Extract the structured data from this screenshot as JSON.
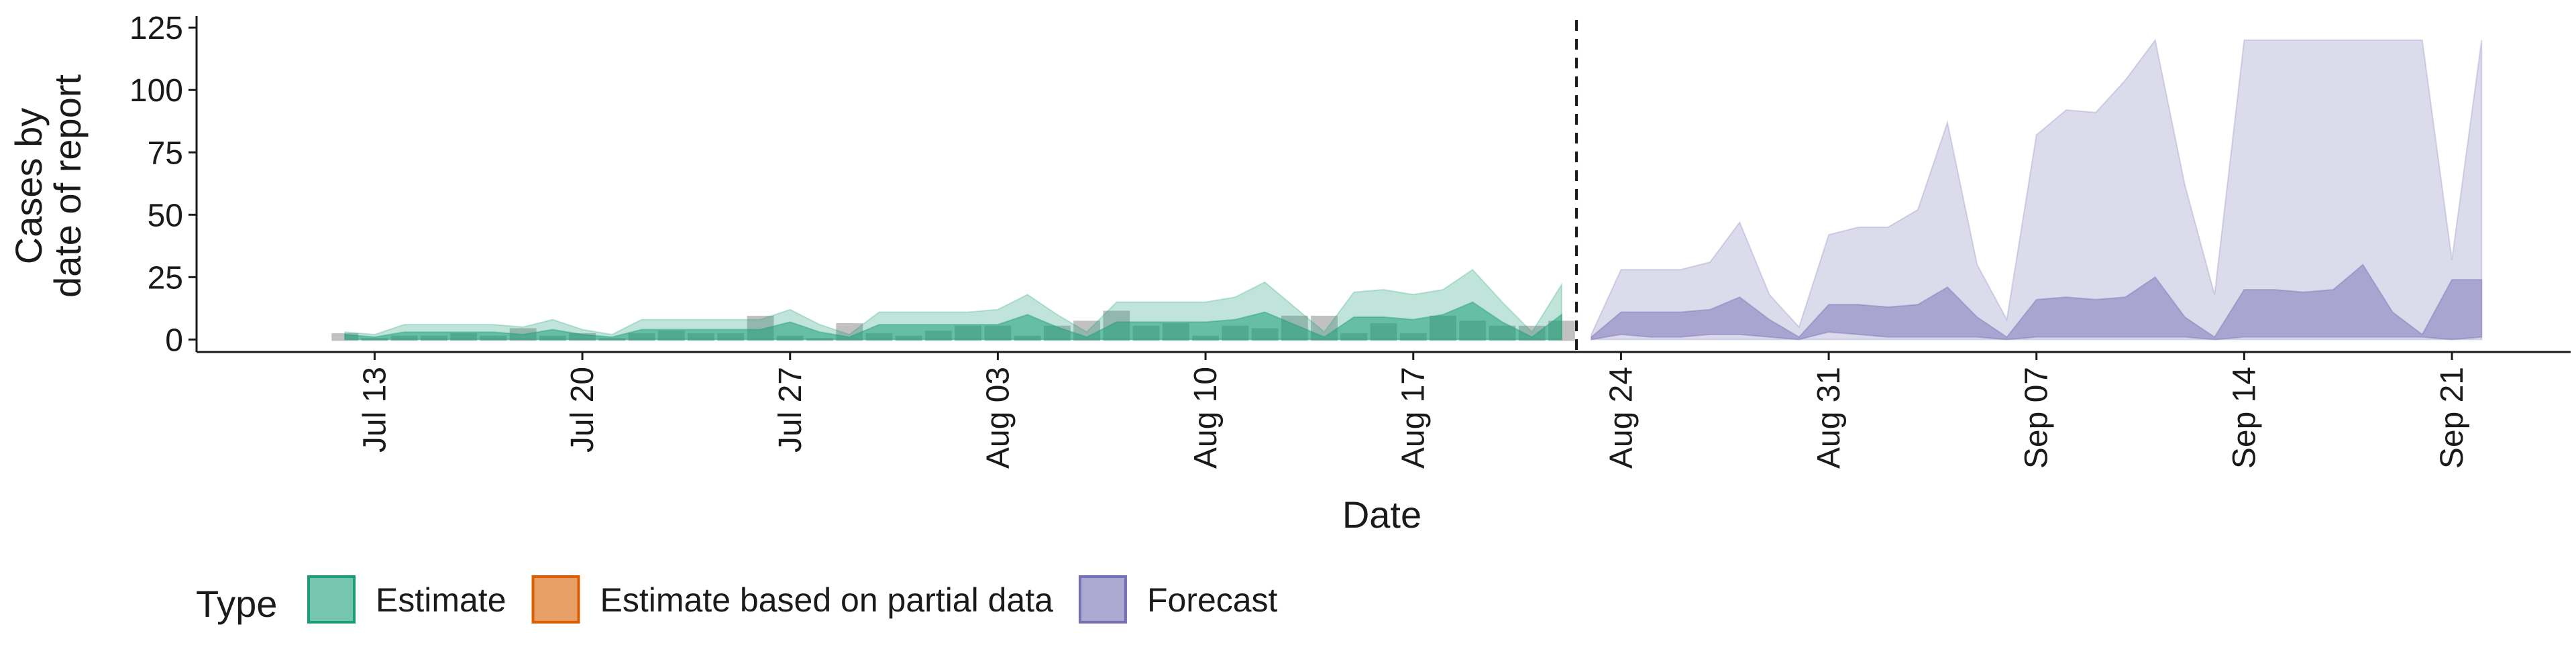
{
  "chart_data": {
    "type": "area",
    "xlabel": "Date",
    "ylabel_lines": [
      "Cases by",
      "date of report"
    ],
    "x_range": [
      "2020-07-07",
      "2020-09-25"
    ],
    "ylim": [
      -5,
      128
    ],
    "y_ticks": [
      0,
      25,
      50,
      75,
      100,
      125
    ],
    "x_ticks": [
      {
        "date": "2020-07-13",
        "label": "Jul 13"
      },
      {
        "date": "2020-07-20",
        "label": "Jul 20"
      },
      {
        "date": "2020-07-27",
        "label": "Jul 27"
      },
      {
        "date": "2020-08-03",
        "label": "Aug 03"
      },
      {
        "date": "2020-08-10",
        "label": "Aug 10"
      },
      {
        "date": "2020-08-17",
        "label": "Aug 17"
      },
      {
        "date": "2020-08-24",
        "label": "Aug 24"
      },
      {
        "date": "2020-08-31",
        "label": "Aug 31"
      },
      {
        "date": "2020-09-07",
        "label": "Sep 07"
      },
      {
        "date": "2020-09-14",
        "label": "Sep 14"
      },
      {
        "date": "2020-09-21",
        "label": "Sep 21"
      }
    ],
    "forecast_boundary": "2020-08-22",
    "legend": {
      "title": "Type",
      "position": "bottom",
      "entries": [
        {
          "label": "Estimate",
          "color": "#1b9e77"
        },
        {
          "label": "Estimate based on partial data",
          "color": "#d95f02"
        },
        {
          "label": "Forecast",
          "color": "#7570b3"
        }
      ]
    },
    "colors": {
      "estimate": "#1b9e77",
      "partial": "#d95f02",
      "forecast": "#7570b3",
      "observed": "#a6a6a6"
    },
    "series": [
      {
        "type": "Estimate",
        "x": [
          "2020-07-12",
          "2020-07-13",
          "2020-07-14",
          "2020-07-15",
          "2020-07-16",
          "2020-07-17",
          "2020-07-18",
          "2020-07-19",
          "2020-07-20",
          "2020-07-21",
          "2020-07-22",
          "2020-07-23",
          "2020-07-24",
          "2020-07-25",
          "2020-07-26",
          "2020-07-27",
          "2020-07-28",
          "2020-07-29",
          "2020-07-30",
          "2020-07-31",
          "2020-08-01",
          "2020-08-02",
          "2020-08-03",
          "2020-08-04",
          "2020-08-05",
          "2020-08-06",
          "2020-08-07",
          "2020-08-08",
          "2020-08-09",
          "2020-08-10",
          "2020-08-11",
          "2020-08-12",
          "2020-08-13",
          "2020-08-14",
          "2020-08-15",
          "2020-08-16",
          "2020-08-17",
          "2020-08-18",
          "2020-08-19",
          "2020-08-20",
          "2020-08-21",
          "2020-08-22"
        ],
        "outer_lower": [
          0,
          0,
          0,
          0,
          0,
          0,
          0,
          0,
          0,
          0,
          0,
          0,
          0,
          0,
          0,
          0,
          0,
          0,
          0,
          0,
          0,
          0,
          0,
          0,
          0,
          0,
          0,
          0,
          0,
          0,
          0,
          0,
          0,
          0,
          0,
          0,
          0,
          0,
          0,
          0,
          0,
          0
        ],
        "outer_upper": [
          3,
          2,
          6,
          6,
          6,
          6,
          5,
          8,
          4,
          2,
          8,
          8,
          8,
          8,
          8,
          12,
          6,
          2,
          11,
          11,
          11,
          11,
          12,
          18,
          10,
          3,
          15,
          15,
          15,
          15,
          17,
          23,
          13,
          3,
          19,
          20,
          18,
          20,
          28,
          15,
          3,
          22
        ],
        "inner_lower": [
          0,
          0,
          0,
          0,
          0,
          0,
          0,
          0,
          0,
          0,
          0,
          0,
          0,
          0,
          0,
          0,
          0,
          0,
          0,
          0,
          0,
          0,
          0,
          0,
          0,
          0,
          0,
          0,
          0,
          0,
          0,
          0,
          0,
          0,
          0,
          0,
          0,
          0,
          0,
          0,
          0,
          0
        ],
        "inner_upper": [
          2,
          1,
          3,
          3,
          3,
          3,
          2,
          4,
          2,
          1,
          4,
          4,
          4,
          4,
          4,
          7,
          3,
          1,
          6,
          6,
          6,
          6,
          6,
          10,
          5,
          1,
          7,
          7,
          7,
          7,
          8,
          11,
          6,
          1,
          9,
          9,
          8,
          10,
          15,
          7,
          1,
          10
        ]
      },
      {
        "type": "Forecast",
        "x": [
          "2020-08-23",
          "2020-08-24",
          "2020-08-25",
          "2020-08-26",
          "2020-08-27",
          "2020-08-28",
          "2020-08-29",
          "2020-08-30",
          "2020-08-31",
          "2020-09-01",
          "2020-09-02",
          "2020-09-03",
          "2020-09-04",
          "2020-09-05",
          "2020-09-06",
          "2020-09-07",
          "2020-09-08",
          "2020-09-09",
          "2020-09-10",
          "2020-09-11",
          "2020-09-12",
          "2020-09-13",
          "2020-09-14",
          "2020-09-15",
          "2020-09-16",
          "2020-09-17",
          "2020-09-18",
          "2020-09-19",
          "2020-09-20",
          "2020-09-21",
          "2020-09-22"
        ],
        "outer_lower": [
          0,
          0,
          0,
          0,
          0,
          0,
          0,
          0,
          0,
          0,
          0,
          0,
          0,
          0,
          0,
          0,
          0,
          0,
          0,
          0,
          0,
          0,
          0,
          0,
          0,
          0,
          0,
          0,
          0,
          0,
          0
        ],
        "outer_upper": [
          2,
          28,
          28,
          28,
          31,
          47,
          18,
          5,
          42,
          45,
          45,
          52,
          87,
          30,
          8,
          82,
          92,
          91,
          104,
          120,
          62,
          18,
          120,
          120,
          120,
          120,
          120,
          120,
          120,
          32,
          120
        ],
        "inner_lower": [
          0,
          2,
          1,
          1,
          2,
          2,
          1,
          0,
          3,
          2,
          1,
          1,
          1,
          1,
          0,
          1,
          1,
          1,
          1,
          1,
          1,
          0,
          1,
          1,
          1,
          1,
          1,
          1,
          1,
          0,
          1
        ],
        "inner_upper": [
          1,
          11,
          11,
          11,
          12,
          17,
          8,
          1,
          14,
          14,
          13,
          14,
          21,
          9,
          1,
          16,
          17,
          16,
          17,
          25,
          9,
          1,
          20,
          20,
          19,
          20,
          30,
          11,
          2,
          24,
          24
        ]
      }
    ],
    "observed_cases": {
      "x": [
        "2020-07-12",
        "2020-07-13",
        "2020-07-14",
        "2020-07-15",
        "2020-07-16",
        "2020-07-17",
        "2020-07-18",
        "2020-07-19",
        "2020-07-20",
        "2020-07-21",
        "2020-07-22",
        "2020-07-23",
        "2020-07-24",
        "2020-07-25",
        "2020-07-26",
        "2020-07-27",
        "2020-07-28",
        "2020-07-29",
        "2020-07-30",
        "2020-07-31",
        "2020-08-01",
        "2020-08-02",
        "2020-08-03",
        "2020-08-04",
        "2020-08-05",
        "2020-08-06",
        "2020-08-07",
        "2020-08-08",
        "2020-08-09",
        "2020-08-10",
        "2020-08-11",
        "2020-08-12",
        "2020-08-13",
        "2020-08-14",
        "2020-08-15",
        "2020-08-16",
        "2020-08-17",
        "2020-08-18",
        "2020-08-19",
        "2020-08-20",
        "2020-08-21",
        "2020-08-22"
      ],
      "values": [
        2,
        0,
        1,
        1,
        2,
        1,
        4,
        1,
        2,
        0,
        2,
        3,
        2,
        2,
        9,
        1,
        0,
        6,
        2,
        1,
        3,
        5,
        5,
        1,
        5,
        7,
        11,
        5,
        6,
        1,
        5,
        4,
        9,
        9,
        2,
        6,
        2,
        9,
        7,
        5,
        5,
        7
      ]
    }
  }
}
